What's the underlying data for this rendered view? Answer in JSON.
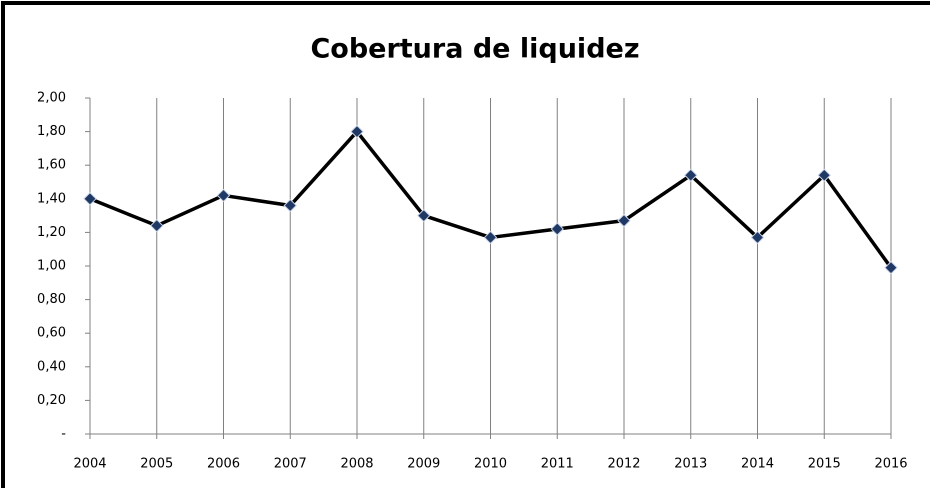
{
  "chart_data": {
    "type": "line",
    "title": "Cobertura de liquidez",
    "categories": [
      "2004",
      "2005",
      "2006",
      "2007",
      "2008",
      "2009",
      "2010",
      "2011",
      "2012",
      "2013",
      "2014",
      "2015",
      "2016"
    ],
    "series": [
      {
        "name": "Cobertura de liquidez",
        "color": "#000000",
        "marker_color": "#1f3864",
        "values": [
          1.4,
          1.24,
          1.42,
          1.36,
          1.8,
          1.3,
          1.17,
          1.22,
          1.27,
          1.54,
          1.17,
          1.54,
          0.99
        ]
      }
    ],
    "ylim": [
      0,
      2
    ],
    "yticks": [
      {
        "value": 0,
        "label": "-"
      },
      {
        "value": 0.2,
        "label": "0,20"
      },
      {
        "value": 0.4,
        "label": "0,40"
      },
      {
        "value": 0.6,
        "label": "0,60"
      },
      {
        "value": 0.8,
        "label": "0,80"
      },
      {
        "value": 1,
        "label": "1,00"
      },
      {
        "value": 1.2,
        "label": "1,20"
      },
      {
        "value": 1.4,
        "label": "1,40"
      },
      {
        "value": 1.6,
        "label": "1,60"
      },
      {
        "value": 1.8,
        "label": "1,80"
      },
      {
        "value": 2,
        "label": "2,00"
      }
    ],
    "grid": "x"
  }
}
